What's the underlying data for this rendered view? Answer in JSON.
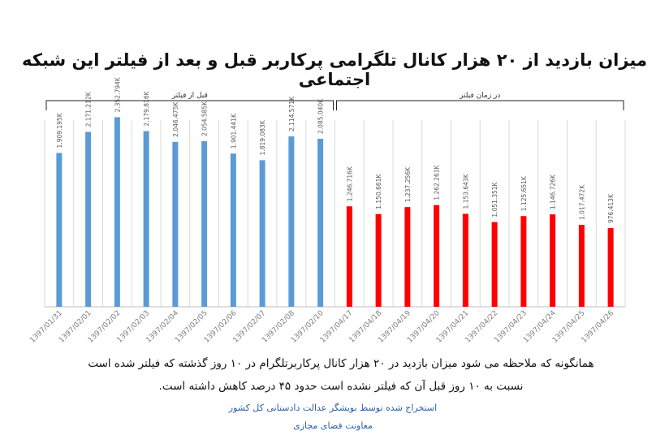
{
  "title": "میزان بازدید از ۲۰ هزار کانال تلگرامی پرکاربر قبل و بعد از فیلتر این شبکه اجتماعی",
  "note_line1": "همانگونه که ملاحظه می شود میزان بازدید در ۲۰ هزار کانال پرکاربرتلگرام در ۱۰ روز گذشته که فیلتر شده است",
  "note_line2": "نسبت به ۱۰ روز قبل آن که فیلتر نشده است حدود ۴۵ درصد کاهش داشته است.",
  "source_line1": "استخراج شده توسط بویشگر عدالت دادستانی کل کشور",
  "source_line2": "معاونت فضای مجازی",
  "colors": {
    "before": "#5b9bd5",
    "after": "#ff0000",
    "grid": "#d9d9d9",
    "bracket": "#222222",
    "label": "#595959"
  },
  "chart_data": {
    "type": "bar",
    "categories": [
      "1397/01/31",
      "1397/02/01",
      "1397/02/02",
      "1397/02/03",
      "1397/02/04",
      "1397/02/05",
      "1397/02/06",
      "1397/02/07",
      "1397/02/08",
      "1397/02/10",
      "1397/04/17",
      "1397/04/18",
      "1397/04/19",
      "1397/04/20",
      "1397/04/21",
      "1397/04/22",
      "1397/04/23",
      "1397/04/24",
      "1397/04/25",
      "1397/04/26"
    ],
    "values": [
      1909195,
      2171212,
      2352794,
      2179816,
      2046475,
      2054585,
      1901441,
      1819083,
      2114571,
      2085040,
      1246716,
      1150661,
      1237256,
      1262261,
      1153643,
      1051351,
      1125651,
      1146726,
      1017472,
      976413
    ],
    "value_labels": [
      "1.909.195K",
      "2.171.212K",
      "2.352.794K",
      "2.179.816K",
      "2.046.475K",
      "2.054.585K",
      "1.901.441K",
      "1.819.083K",
      "2.114.571K",
      "2.085.040K",
      "1.246.716K",
      "1.150.661K",
      "1.237.256K",
      "1.262.261K",
      "1.153.643K",
      "1.051.351K",
      "1.125.651K",
      "1.146.726K",
      "1.017.472K",
      "976.413K"
    ],
    "groups": [
      {
        "label": "قبل از فیلتر",
        "start": 0,
        "end": 9,
        "color": "#5b9bd5"
      },
      {
        "label": "در زمان فیلتر",
        "start": 10,
        "end": 19,
        "color": "#ff0000"
      }
    ],
    "ylim": [
      0,
      2800000
    ],
    "grid": true,
    "legend": "none"
  }
}
